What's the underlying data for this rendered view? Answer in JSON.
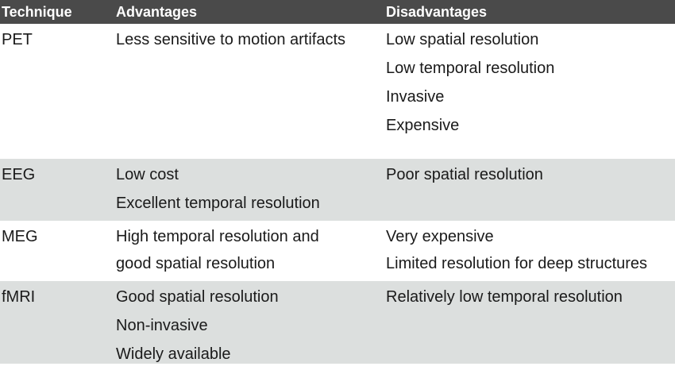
{
  "header": {
    "technique": "Technique",
    "advantages": "Advantages",
    "disadvantages": "Disadvantages"
  },
  "rows": [
    {
      "technique": "PET",
      "advantages": [
        "Less sensitive to motion artifacts"
      ],
      "disadvantages": [
        "Low spatial resolution",
        "Low temporal resolution",
        "Invasive",
        "Expensive"
      ],
      "shaded": false
    },
    {
      "technique": "EEG",
      "advantages": [
        "Low cost",
        "Excellent temporal resolution"
      ],
      "disadvantages": [
        "Poor spatial resolution"
      ],
      "shaded": true
    },
    {
      "technique": "MEG",
      "advantages": [
        "High temporal resolution and",
        "good spatial resolution"
      ],
      "disadvantages": [
        "Very expensive",
        "Limited resolution for deep structures"
      ],
      "shaded": false
    },
    {
      "technique": "fMRI",
      "advantages": [
        "Good spatial resolution",
        "Non-invasive",
        "Widely available"
      ],
      "disadvantages": [
        "Relatively low temporal resolution"
      ],
      "shaded": true
    }
  ],
  "colors": {
    "header_background": "#4a4a4a",
    "header_text": "#ffffff",
    "shaded_row": "#dcdfde",
    "body_text": "#1a1a1a"
  }
}
